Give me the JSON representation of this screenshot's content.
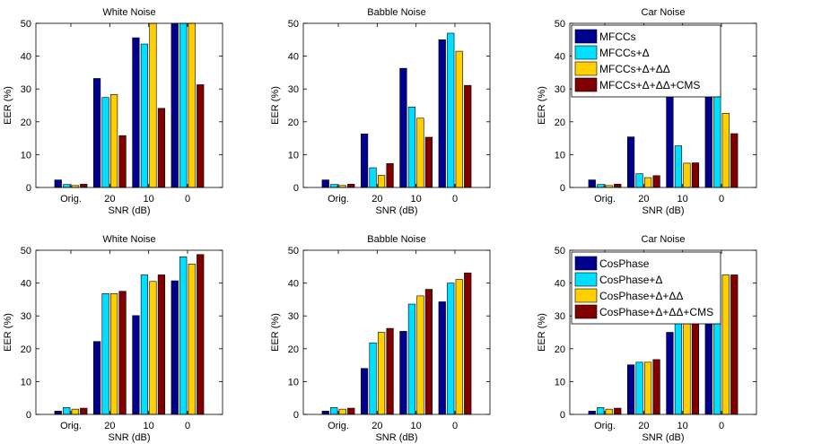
{
  "chart_data": [
    {
      "type": "bar",
      "title": "White Noise",
      "xlabel": "SNR (dB)",
      "ylabel": "EER (%)",
      "categories": [
        "Orig.",
        "20",
        "10",
        "0"
      ],
      "ylim": [
        0,
        50
      ],
      "yticks": [
        0,
        10,
        20,
        30,
        40,
        50
      ],
      "series": [
        {
          "name": "MFCCs",
          "color": "#00008f",
          "values": [
            2.3,
            33.2,
            45.6,
            50
          ]
        },
        {
          "name": "MFCCs+Δ",
          "color": "#00dfff",
          "values": [
            0.9,
            27.4,
            43.7,
            50
          ]
        },
        {
          "name": "MFCCs+Δ+ΔΔ",
          "color": "#ffcf00",
          "values": [
            0.6,
            28.3,
            50,
            50
          ]
        },
        {
          "name": "MFCCs+Δ+ΔΔ+CMS",
          "color": "#800000",
          "values": [
            1.0,
            15.8,
            24.1,
            31.3
          ]
        }
      ]
    },
    {
      "type": "bar",
      "title": "Babble Noise",
      "xlabel": "SNR (dB)",
      "ylabel": "EER (%)",
      "categories": [
        "Orig.",
        "20",
        "10",
        "0"
      ],
      "ylim": [
        0,
        50
      ],
      "yticks": [
        0,
        10,
        20,
        30,
        40,
        50
      ],
      "series": [
        {
          "name": "MFCCs",
          "color": "#00008f",
          "values": [
            2.3,
            16.3,
            36.3,
            45.0
          ]
        },
        {
          "name": "MFCCs+Δ",
          "color": "#00dfff",
          "values": [
            0.9,
            6.0,
            24.5,
            47.0
          ]
        },
        {
          "name": "MFCCs+Δ+ΔΔ",
          "color": "#ffcf00",
          "values": [
            0.6,
            3.7,
            21.1,
            41.5
          ]
        },
        {
          "name": "MFCCs+Δ+ΔΔ+CMS",
          "color": "#800000",
          "values": [
            1.0,
            7.3,
            15.3,
            31.1
          ]
        }
      ]
    },
    {
      "type": "bar",
      "title": "Car Noise",
      "xlabel": "SNR (dB)",
      "ylabel": "EER (%)",
      "categories": [
        "Orig.",
        "20",
        "10",
        "0"
      ],
      "ylim": [
        0,
        50
      ],
      "yticks": [
        0,
        10,
        20,
        30,
        40,
        50
      ],
      "legend": "top-left",
      "series": [
        {
          "name": "MFCCs",
          "color": "#00008f",
          "values": [
            2.3,
            15.4,
            29.0,
            42.0
          ]
        },
        {
          "name": "MFCCs+Δ",
          "color": "#00dfff",
          "values": [
            0.9,
            4.2,
            12.7,
            29.0
          ]
        },
        {
          "name": "MFCCs+Δ+ΔΔ",
          "color": "#ffcf00",
          "values": [
            0.6,
            3.0,
            7.4,
            22.6
          ]
        },
        {
          "name": "MFCCs+Δ+ΔΔ+CMS",
          "color": "#800000",
          "values": [
            1.0,
            3.6,
            7.5,
            16.4
          ]
        }
      ]
    },
    {
      "type": "bar",
      "title": "White Noise",
      "xlabel": "SNR (dB)",
      "ylabel": "EER (%)",
      "categories": [
        "Orig.",
        "20",
        "10",
        "0"
      ],
      "ylim": [
        0,
        50
      ],
      "yticks": [
        0,
        10,
        20,
        30,
        40,
        50
      ],
      "series": [
        {
          "name": "CosPhase",
          "color": "#00008f",
          "values": [
            1.0,
            22.2,
            30.1,
            40.7
          ]
        },
        {
          "name": "CosPhase+Δ",
          "color": "#00dfff",
          "values": [
            2.1,
            36.8,
            42.5,
            48.0
          ]
        },
        {
          "name": "CosPhase+Δ+ΔΔ",
          "color": "#ffcf00",
          "values": [
            1.6,
            36.8,
            40.5,
            45.8
          ]
        },
        {
          "name": "CosPhase+Δ+ΔΔ+CMS",
          "color": "#800000",
          "values": [
            1.9,
            37.5,
            42.5,
            48.7
          ]
        }
      ]
    },
    {
      "type": "bar",
      "title": "Babble Noise",
      "xlabel": "SNR (dB)",
      "ylabel": "EER (%)",
      "categories": [
        "Orig.",
        "20",
        "10",
        "0"
      ],
      "ylim": [
        0,
        50
      ],
      "yticks": [
        0,
        10,
        20,
        30,
        40,
        50
      ],
      "series": [
        {
          "name": "CosPhase",
          "color": "#00008f",
          "values": [
            1.0,
            14.0,
            25.3,
            34.3
          ]
        },
        {
          "name": "CosPhase+Δ",
          "color": "#00dfff",
          "values": [
            2.1,
            21.8,
            33.6,
            40.0
          ]
        },
        {
          "name": "CosPhase+Δ+ΔΔ",
          "color": "#ffcf00",
          "values": [
            1.6,
            25.0,
            36.1,
            41.1
          ]
        },
        {
          "name": "CosPhase+Δ+ΔΔ+CMS",
          "color": "#800000",
          "values": [
            1.9,
            26.2,
            38.1,
            43.1
          ]
        }
      ]
    },
    {
      "type": "bar",
      "title": "Car Noise",
      "xlabel": "SNR (dB)",
      "ylabel": "EER (%)",
      "categories": [
        "Orig.",
        "20",
        "10",
        "0"
      ],
      "ylim": [
        0,
        50
      ],
      "yticks": [
        0,
        10,
        20,
        30,
        40,
        50
      ],
      "legend": "top-left",
      "series": [
        {
          "name": "CosPhase",
          "color": "#00008f",
          "values": [
            1.0,
            15.1,
            25.0,
            31.0
          ]
        },
        {
          "name": "CosPhase+Δ",
          "color": "#00dfff",
          "values": [
            2.1,
            15.9,
            29.0,
            42.3
          ]
        },
        {
          "name": "CosPhase+Δ+ΔΔ",
          "color": "#ffcf00",
          "values": [
            1.6,
            15.9,
            28.6,
            42.5
          ]
        },
        {
          "name": "CosPhase+Δ+ΔΔ+CMS",
          "color": "#800000",
          "values": [
            1.9,
            16.7,
            29.0,
            42.5
          ]
        }
      ]
    }
  ]
}
